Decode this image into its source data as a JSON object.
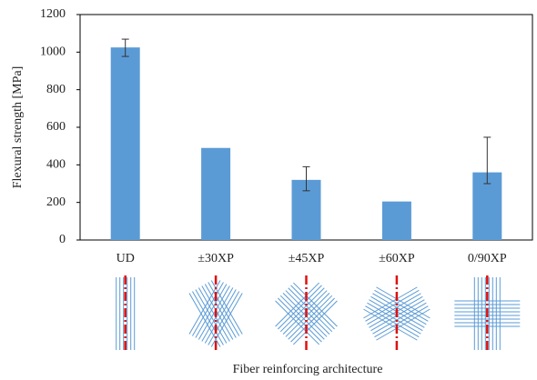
{
  "chart_data": {
    "type": "bar",
    "x_label": "Fiber reinforcing architecture",
    "y_label": "Flexural strength [MPa]",
    "categories": [
      "UD",
      "±30XP",
      "±45XP",
      "±60XP",
      "0/90XP"
    ],
    "values": [
      1025,
      490,
      320,
      205,
      360
    ],
    "error_low": [
      48,
      null,
      58,
      null,
      60
    ],
    "error_high": [
      44,
      null,
      70,
      null,
      187
    ],
    "color": "#5b9bd5",
    "ylim": [
      0,
      1200
    ],
    "yticks": [
      0,
      200,
      400,
      600,
      800,
      1000,
      1200
    ],
    "grid": false
  }
}
